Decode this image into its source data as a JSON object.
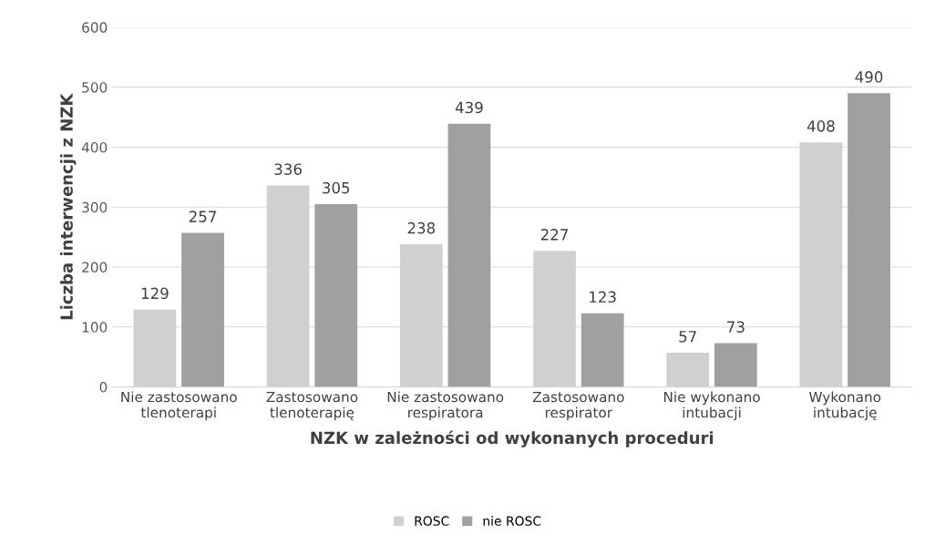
{
  "chart_data": {
    "type": "bar",
    "xlabel": "NZK w zależności od wykonanych proceduri",
    "ylabel": "Liczba interwencji z NZK",
    "categories": [
      "Nie zastosowano\ntlenoterapi",
      "Zastosowano\ntlenoterapię",
      "Nie zastosowano\nrespiratora",
      "Zastosowano\nrespirator",
      "Nie wykonano\nintubacji",
      "Wykonano\nintubację"
    ],
    "series": [
      {
        "name": "ROSC",
        "color": "#d0d0d0",
        "values": [
          129,
          336,
          238,
          227,
          57,
          408
        ]
      },
      {
        "name": "nie ROSC",
        "color": "#a0a0a0",
        "values": [
          257,
          305,
          439,
          123,
          73,
          490
        ]
      }
    ],
    "ylim": [
      0,
      600
    ],
    "yticks": [
      0,
      100,
      200,
      300,
      400,
      500,
      600
    ],
    "grid": "y",
    "legend": "bottom",
    "data_labels": true
  }
}
